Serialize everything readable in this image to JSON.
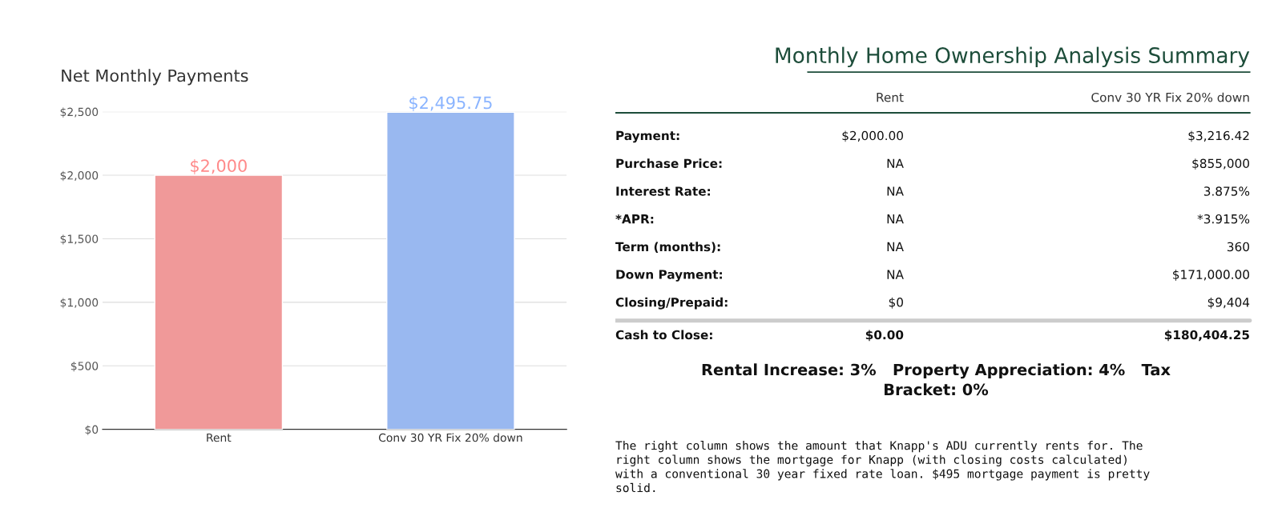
{
  "chart_data": [
    {
      "type": "bar",
      "title": "Net Monthly Payments",
      "categories": [
        "Rent",
        "Conv 30 YR Fix 20% down"
      ],
      "values": [
        2000,
        2495.75
      ],
      "colors": [
        "#ff8a8a",
        "#8ab4ff"
      ],
      "value_labels": [
        "$2,000",
        "$2,495.75"
      ],
      "ylim": [
        0,
        2500
      ],
      "yticks": [
        {
          "value": 0,
          "label": "$0"
        },
        {
          "value": 500,
          "label": "$500"
        },
        {
          "value": 1000,
          "label": "$1,000"
        },
        {
          "value": 1500,
          "label": "$1,500"
        },
        {
          "value": 2000,
          "label": "$2,000"
        },
        {
          "value": 2500,
          "label": "$2,500"
        }
      ],
      "grid": "y",
      "legend": false
    },
    {
      "type": "other",
      "title": "Monthly Home Ownership Analysis Summary",
      "categories": [
        "Rent",
        "Conv 30 YR Fix 20% down"
      ],
      "y_categories": [
        "Payment:",
        "Purchase Price:",
        "Interest Rate:",
        "*APR:",
        "Term (months):",
        "Down Payment:",
        "Closing/Prepaid:",
        "Cash to Close:"
      ],
      "cell_labels": [
        [
          "$2,000.00",
          "$3,216.42"
        ],
        [
          "NA",
          "$855,000"
        ],
        [
          "NA",
          "3.875%"
        ],
        [
          "NA",
          "*3.915%"
        ],
        [
          "NA",
          "360"
        ],
        [
          "NA",
          "$171,000.00"
        ],
        [
          "$0",
          "$9,404"
        ],
        [
          "$0.00",
          "$180,404.25"
        ]
      ],
      "annotations": [
        "Rental Increase: 3%   Property Appreciation: 4%   Tax\nBracket: 0%",
        "The right column shows the amount that Knapp's ADU currently rents for. The\nright column shows the mortgage for Knapp (with closing costs calculated)\nwith a conventional 30 year fixed rate loan. $495 mortgage payment is pretty\nsolid."
      ]
    }
  ]
}
